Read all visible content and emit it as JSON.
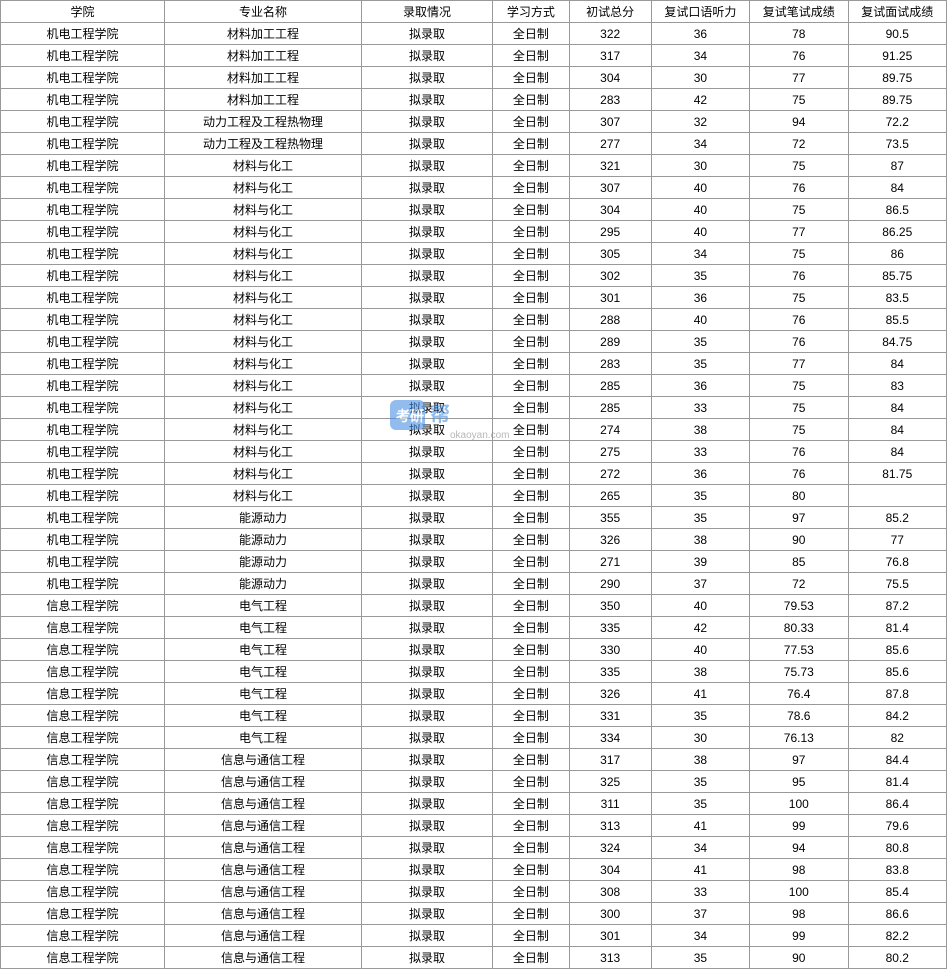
{
  "columns": [
    "学院",
    "专业名称",
    "录取情况",
    "学习方式",
    "初试总分",
    "复试口语听力",
    "复试笔试成绩",
    "复试面试成绩"
  ],
  "watermark_text": "okaoyan.com",
  "rows": [
    [
      "机电工程学院",
      "材料加工工程",
      "拟录取",
      "全日制",
      "322",
      "36",
      "78",
      "90.5"
    ],
    [
      "机电工程学院",
      "材料加工工程",
      "拟录取",
      "全日制",
      "317",
      "34",
      "76",
      "91.25"
    ],
    [
      "机电工程学院",
      "材料加工工程",
      "拟录取",
      "全日制",
      "304",
      "30",
      "77",
      "89.75"
    ],
    [
      "机电工程学院",
      "材料加工工程",
      "拟录取",
      "全日制",
      "283",
      "42",
      "75",
      "89.75"
    ],
    [
      "机电工程学院",
      "动力工程及工程热物理",
      "拟录取",
      "全日制",
      "307",
      "32",
      "94",
      "72.2"
    ],
    [
      "机电工程学院",
      "动力工程及工程热物理",
      "拟录取",
      "全日制",
      "277",
      "34",
      "72",
      "73.5"
    ],
    [
      "机电工程学院",
      "材料与化工",
      "拟录取",
      "全日制",
      "321",
      "30",
      "75",
      "87"
    ],
    [
      "机电工程学院",
      "材料与化工",
      "拟录取",
      "全日制",
      "307",
      "40",
      "76",
      "84"
    ],
    [
      "机电工程学院",
      "材料与化工",
      "拟录取",
      "全日制",
      "304",
      "40",
      "75",
      "86.5"
    ],
    [
      "机电工程学院",
      "材料与化工",
      "拟录取",
      "全日制",
      "295",
      "40",
      "77",
      "86.25"
    ],
    [
      "机电工程学院",
      "材料与化工",
      "拟录取",
      "全日制",
      "305",
      "34",
      "75",
      "86"
    ],
    [
      "机电工程学院",
      "材料与化工",
      "拟录取",
      "全日制",
      "302",
      "35",
      "76",
      "85.75"
    ],
    [
      "机电工程学院",
      "材料与化工",
      "拟录取",
      "全日制",
      "301",
      "36",
      "75",
      "83.5"
    ],
    [
      "机电工程学院",
      "材料与化工",
      "拟录取",
      "全日制",
      "288",
      "40",
      "76",
      "85.5"
    ],
    [
      "机电工程学院",
      "材料与化工",
      "拟录取",
      "全日制",
      "289",
      "35",
      "76",
      "84.75"
    ],
    [
      "机电工程学院",
      "材料与化工",
      "拟录取",
      "全日制",
      "283",
      "35",
      "77",
      "84"
    ],
    [
      "机电工程学院",
      "材料与化工",
      "拟录取",
      "全日制",
      "285",
      "36",
      "75",
      "83"
    ],
    [
      "机电工程学院",
      "材料与化工",
      "拟录取",
      "全日制",
      "285",
      "33",
      "75",
      "84"
    ],
    [
      "机电工程学院",
      "材料与化工",
      "拟录取",
      "全日制",
      "274",
      "38",
      "75",
      "84"
    ],
    [
      "机电工程学院",
      "材料与化工",
      "拟录取",
      "全日制",
      "275",
      "33",
      "76",
      "84"
    ],
    [
      "机电工程学院",
      "材料与化工",
      "拟录取",
      "全日制",
      "272",
      "36",
      "76",
      "81.75"
    ],
    [
      "机电工程学院",
      "材料与化工",
      "拟录取",
      "全日制",
      "265",
      "35",
      "80",
      ""
    ],
    [
      "机电工程学院",
      "能源动力",
      "拟录取",
      "全日制",
      "355",
      "35",
      "97",
      "85.2"
    ],
    [
      "机电工程学院",
      "能源动力",
      "拟录取",
      "全日制",
      "326",
      "38",
      "90",
      "77"
    ],
    [
      "机电工程学院",
      "能源动力",
      "拟录取",
      "全日制",
      "271",
      "39",
      "85",
      "76.8"
    ],
    [
      "机电工程学院",
      "能源动力",
      "拟录取",
      "全日制",
      "290",
      "37",
      "72",
      "75.5"
    ],
    [
      "信息工程学院",
      "电气工程",
      "拟录取",
      "全日制",
      "350",
      "40",
      "79.53",
      "87.2"
    ],
    [
      "信息工程学院",
      "电气工程",
      "拟录取",
      "全日制",
      "335",
      "42",
      "80.33",
      "81.4"
    ],
    [
      "信息工程学院",
      "电气工程",
      "拟录取",
      "全日制",
      "330",
      "40",
      "77.53",
      "85.6"
    ],
    [
      "信息工程学院",
      "电气工程",
      "拟录取",
      "全日制",
      "335",
      "38",
      "75.73",
      "85.6"
    ],
    [
      "信息工程学院",
      "电气工程",
      "拟录取",
      "全日制",
      "326",
      "41",
      "76.4",
      "87.8"
    ],
    [
      "信息工程学院",
      "电气工程",
      "拟录取",
      "全日制",
      "331",
      "35",
      "78.6",
      "84.2"
    ],
    [
      "信息工程学院",
      "电气工程",
      "拟录取",
      "全日制",
      "334",
      "30",
      "76.13",
      "82"
    ],
    [
      "信息工程学院",
      "信息与通信工程",
      "拟录取",
      "全日制",
      "317",
      "38",
      "97",
      "84.4"
    ],
    [
      "信息工程学院",
      "信息与通信工程",
      "拟录取",
      "全日制",
      "325",
      "35",
      "95",
      "81.4"
    ],
    [
      "信息工程学院",
      "信息与通信工程",
      "拟录取",
      "全日制",
      "311",
      "35",
      "100",
      "86.4"
    ],
    [
      "信息工程学院",
      "信息与通信工程",
      "拟录取",
      "全日制",
      "313",
      "41",
      "99",
      "79.6"
    ],
    [
      "信息工程学院",
      "信息与通信工程",
      "拟录取",
      "全日制",
      "324",
      "34",
      "94",
      "80.8"
    ],
    [
      "信息工程学院",
      "信息与通信工程",
      "拟录取",
      "全日制",
      "304",
      "41",
      "98",
      "83.8"
    ],
    [
      "信息工程学院",
      "信息与通信工程",
      "拟录取",
      "全日制",
      "308",
      "33",
      "100",
      "85.4"
    ],
    [
      "信息工程学院",
      "信息与通信工程",
      "拟录取",
      "全日制",
      "300",
      "37",
      "98",
      "86.6"
    ],
    [
      "信息工程学院",
      "信息与通信工程",
      "拟录取",
      "全日制",
      "301",
      "34",
      "99",
      "82.2"
    ],
    [
      "信息工程学院",
      "信息与通信工程",
      "拟录取",
      "全日制",
      "313",
      "35",
      "90",
      "80.2"
    ]
  ],
  "column_classes": [
    "col-college",
    "col-major",
    "col-status",
    "col-mode",
    "col-score1",
    "col-score2",
    "col-score3",
    "col-score4"
  ]
}
